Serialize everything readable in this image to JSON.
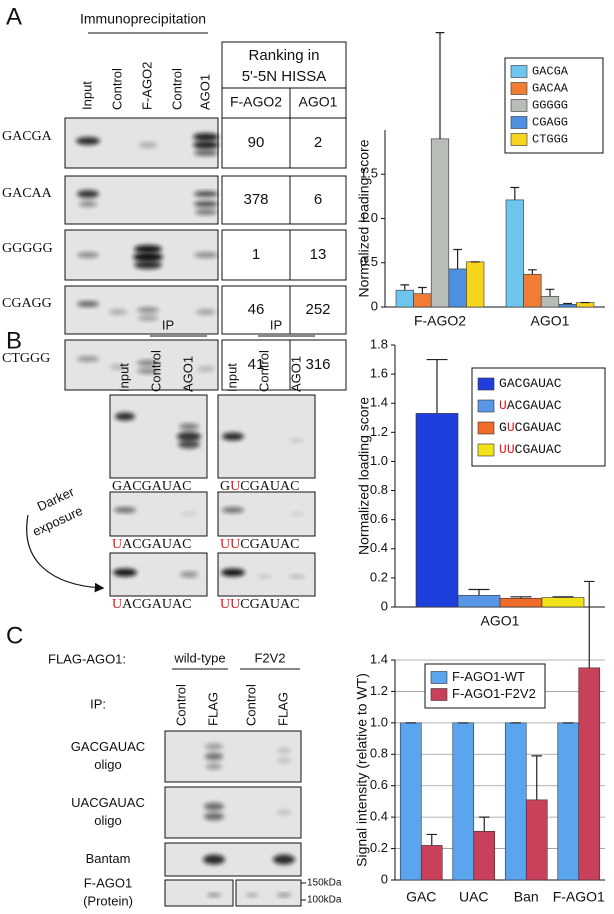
{
  "panel_labels": [
    "A",
    "B",
    "C"
  ],
  "panel_a": {
    "header": "Immunoprecipitation",
    "lanes": [
      "Input",
      "Control",
      "F-AGO2",
      "Control",
      "AGO1"
    ],
    "rows": [
      "GACGA",
      "GACAA",
      "GGGGG",
      "CGAGG",
      "CTGGG"
    ],
    "table": {
      "title": [
        "Ranking in",
        "5'-5N HISSA"
      ],
      "columns": [
        "F-AGO2",
        "AGO1"
      ],
      "rows": [
        [
          90,
          2
        ],
        [
          378,
          6
        ],
        [
          1,
          13
        ],
        [
          46,
          252
        ],
        [
          41,
          316
        ]
      ]
    }
  },
  "panel_b": {
    "ip_labels": [
      "IP",
      "IP"
    ],
    "lane_groups": [
      [
        "Input",
        "Control",
        "AGO1"
      ],
      [
        "Input",
        "Control",
        "AGO1"
      ]
    ],
    "blot_labels": [
      [
        "GACGAUAC",
        "GUCGAUAC"
      ],
      [
        "UACGAUAC",
        "UUCGAUAC"
      ],
      [
        "UACGAUAC",
        "UUCGAUAC"
      ]
    ],
    "exposure_note": [
      "Darker",
      "exposure"
    ]
  },
  "panel_c": {
    "construct_label": "FLAG-AGO1:",
    "groups": [
      "wild-type",
      "F2V2"
    ],
    "ip_label": "IP:",
    "lanes": [
      "Control",
      "FLAG",
      "Control",
      "FLAG"
    ],
    "rows": [
      [
        "GACGAUAC",
        "oligo"
      ],
      [
        "UACGAUAC",
        "oligo"
      ],
      [
        "Bantam"
      ],
      [
        "F-AGO1",
        "(Protein)"
      ]
    ],
    "markers": [
      "150kDa",
      "100kDa"
    ]
  },
  "chart_data": [
    {
      "type": "bar",
      "y_label": "Normalized loading score",
      "categories": [
        "F-AGO2",
        "AGO1"
      ],
      "series": [
        {
          "name": "GACGA",
          "color": "#6ec6f0",
          "values": [
            0.19,
            1.21
          ],
          "errors": [
            0.06,
            0.14
          ]
        },
        {
          "name": "GACAA",
          "color": "#f07d33",
          "values": [
            0.15,
            0.37
          ],
          "errors": [
            0.07,
            0.05
          ]
        },
        {
          "name": "GGGGG",
          "color": "#b9bdb8",
          "values": [
            1.9,
            0.12
          ],
          "errors": [
            1.2,
            0.08
          ]
        },
        {
          "name": "CGAGG",
          "color": "#4f8fe0",
          "values": [
            0.43,
            0.03
          ],
          "errors": [
            0.22,
            0.01
          ]
        },
        {
          "name": "CTGGG",
          "color": "#f7d51d",
          "values": [
            0.51,
            0.05
          ],
          "errors": [
            0,
            0
          ]
        }
      ],
      "ylim": [
        0,
        2
      ],
      "yticks": [
        0,
        0.5,
        {
          "value": 1,
          "label": "1.0"
        },
        1.5
      ],
      "grid": false,
      "legend": "upper right"
    },
    {
      "type": "bar",
      "y_label": "Normalized loading score",
      "categories": [
        "AGO1"
      ],
      "series": [
        {
          "name": "GACGAUAC",
          "color": "#1f3fdc",
          "values": [
            1.33
          ],
          "errors": [
            0.37
          ]
        },
        {
          "name": "UACGAUAC",
          "color": "#5a96e6",
          "values": [
            0.08
          ],
          "errors": [
            0.04
          ]
        },
        {
          "name": "GUCGAUAC",
          "color": "#f06a28",
          "values": [
            0.06
          ],
          "errors": [
            0.01
          ]
        },
        {
          "name": "UUCGAUAC",
          "color": "#f2e21a",
          "values": [
            0.065
          ],
          "errors": [
            0.005
          ]
        }
      ],
      "ylim": [
        0,
        1.8
      ],
      "yticks": [
        0,
        0.2,
        0.4,
        0.6,
        0.8,
        {
          "value": 1,
          "label": "1.0"
        },
        1.2,
        1.4,
        1.6,
        1.8
      ],
      "grid": false,
      "legend": "upper right",
      "highlight_mismatch": true
    },
    {
      "type": "bar",
      "y_label": "Signal intensity (relative to WT)",
      "categories": [
        "GAC",
        "UAC",
        "Ban",
        "F-AGO1"
      ],
      "series": [
        {
          "name": "F-AGO1-WT",
          "color": "#5aa5ee",
          "values": [
            1,
            1,
            1,
            1
          ],
          "errors": [
            0,
            0,
            0,
            0
          ]
        },
        {
          "name": "F-AGO1-F2V2",
          "color": "#c9405a",
          "values": [
            0.22,
            0.31,
            0.51,
            1.35
          ],
          "errors": [
            0.07,
            0.09,
            0.28,
            0.55
          ]
        }
      ],
      "ylim": [
        0,
        1.4
      ],
      "yticks": [
        0,
        0.2,
        0.4,
        0.6,
        0.8,
        {
          "value": 1,
          "label": "1.0"
        },
        1.2,
        1.4
      ],
      "grid": true,
      "legend": "upper left"
    }
  ]
}
